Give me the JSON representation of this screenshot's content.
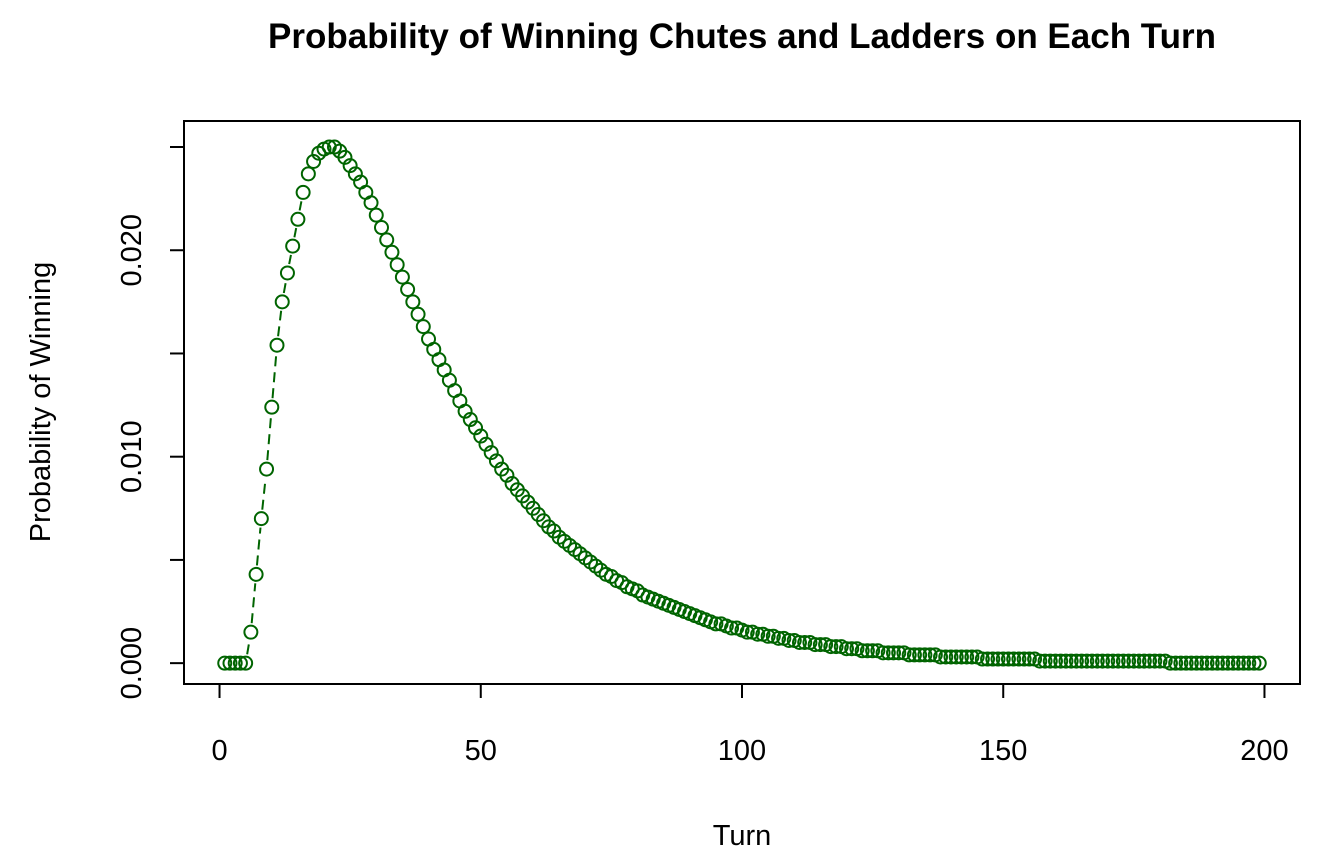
{
  "chart_data": {
    "type": "scatter",
    "title": "Probability of Winning Chutes and Ladders on Each Turn",
    "xlabel": "Turn",
    "ylabel": "Probability of Winning",
    "xlim": [
      -6.8,
      206.8
    ],
    "ylim": [
      -0.00101,
      0.02626
    ],
    "xticks": [
      0,
      50,
      100,
      150,
      200
    ],
    "yticks": [
      0.0,
      0.005,
      0.01,
      0.015,
      0.02,
      0.025
    ],
    "ytick_labels": [
      "0.000",
      "",
      "0.010",
      "",
      "0.020",
      ""
    ],
    "grid": false,
    "legend": "none",
    "marker": "open-circle",
    "line_style": "dashed",
    "series": [
      {
        "color": "#006400",
        "x": [
          1,
          2,
          3,
          4,
          5,
          6,
          7,
          8,
          9,
          10,
          11,
          12,
          13,
          14,
          15,
          16,
          17,
          18,
          19,
          20,
          21,
          22,
          23,
          24,
          25,
          26,
          27,
          28,
          29,
          30,
          31,
          32,
          33,
          34,
          35,
          36,
          37,
          38,
          39,
          40,
          41,
          42,
          43,
          44,
          45,
          46,
          47,
          48,
          49,
          50,
          51,
          52,
          53,
          54,
          55,
          56,
          57,
          58,
          59,
          60,
          61,
          62,
          63,
          64,
          65,
          66,
          67,
          68,
          69,
          70,
          71,
          72,
          73,
          74,
          75,
          76,
          77,
          78,
          79,
          80,
          81,
          82,
          83,
          84,
          85,
          86,
          87,
          88,
          89,
          90,
          91,
          92,
          93,
          94,
          95,
          96,
          97,
          98,
          99,
          100,
          101,
          102,
          103,
          104,
          105,
          106,
          107,
          108,
          109,
          110,
          111,
          112,
          113,
          114,
          115,
          116,
          117,
          118,
          119,
          120,
          121,
          122,
          123,
          124,
          125,
          126,
          127,
          128,
          129,
          130,
          131,
          132,
          133,
          134,
          135,
          136,
          137,
          138,
          139,
          140,
          141,
          142,
          143,
          144,
          145,
          146,
          147,
          148,
          149,
          150,
          151,
          152,
          153,
          154,
          155,
          156,
          157,
          158,
          159,
          160,
          161,
          162,
          163,
          164,
          165,
          166,
          167,
          168,
          169,
          170,
          171,
          172,
          173,
          174,
          175,
          176,
          177,
          178,
          179,
          180,
          181,
          182,
          183,
          184,
          185,
          186,
          187,
          188,
          189,
          190,
          191,
          192,
          193,
          194,
          195,
          196,
          197,
          198,
          199
        ],
        "y": [
          0.0,
          0.0,
          0.0,
          0.0,
          0.0,
          0.0015,
          0.0043,
          0.007,
          0.0094,
          0.0124,
          0.0154,
          0.0175,
          0.0189,
          0.0202,
          0.0215,
          0.0228,
          0.0237,
          0.0243,
          0.0247,
          0.0249,
          0.025,
          0.025,
          0.0248,
          0.0245,
          0.0241,
          0.0237,
          0.0233,
          0.0228,
          0.0223,
          0.0217,
          0.0211,
          0.0205,
          0.0199,
          0.0193,
          0.0187,
          0.0181,
          0.0175,
          0.0169,
          0.0163,
          0.0157,
          0.0152,
          0.0147,
          0.0142,
          0.0137,
          0.0132,
          0.0127,
          0.0122,
          0.0118,
          0.0114,
          0.011,
          0.0106,
          0.0102,
          0.0098,
          0.0094,
          0.0091,
          0.0087,
          0.0084,
          0.0081,
          0.0078,
          0.0075,
          0.0072,
          0.0069,
          0.0066,
          0.0064,
          0.0061,
          0.0059,
          0.0057,
          0.0055,
          0.0053,
          0.0051,
          0.0049,
          0.0047,
          0.0045,
          0.0043,
          0.0042,
          0.004,
          0.0039,
          0.0037,
          0.0036,
          0.0035,
          0.0033,
          0.0032,
          0.0031,
          0.003,
          0.0029,
          0.0028,
          0.0027,
          0.0026,
          0.0025,
          0.0024,
          0.0023,
          0.0022,
          0.0021,
          0.002,
          0.0019,
          0.0019,
          0.0018,
          0.0017,
          0.0017,
          0.0016,
          0.0015,
          0.0015,
          0.0014,
          0.0014,
          0.0013,
          0.0013,
          0.0012,
          0.0012,
          0.0011,
          0.0011,
          0.001,
          0.001,
          0.001,
          0.0009,
          0.0009,
          0.0009,
          0.0008,
          0.0008,
          0.0008,
          0.0007,
          0.0007,
          0.0007,
          0.0006,
          0.0006,
          0.0006,
          0.0006,
          0.0005,
          0.0005,
          0.0005,
          0.0005,
          0.0005,
          0.0004,
          0.0004,
          0.0004,
          0.0004,
          0.0004,
          0.0004,
          0.0003,
          0.0003,
          0.0003,
          0.0003,
          0.0003,
          0.0003,
          0.0003,
          0.0003,
          0.0002,
          0.0002,
          0.0002,
          0.0002,
          0.0002,
          0.0002,
          0.0002,
          0.0002,
          0.0002,
          0.0002,
          0.0002,
          0.0001,
          0.0001,
          0.0001,
          0.0001,
          0.0001,
          0.0001,
          0.0001,
          0.0001,
          0.0001,
          0.0001,
          0.0001,
          0.0001,
          0.0001,
          0.0001,
          0.0001,
          0.0001,
          0.0001,
          0.0001,
          0.0001,
          0.0001,
          0.0001,
          0.0001,
          0.0001,
          0.0001,
          0.0001,
          0.0,
          0.0,
          0.0,
          0.0,
          0.0,
          0.0,
          0.0,
          0.0,
          0.0,
          0.0,
          0.0,
          0.0,
          0.0,
          0.0,
          0.0,
          0.0,
          0.0,
          0.0
        ]
      }
    ]
  }
}
